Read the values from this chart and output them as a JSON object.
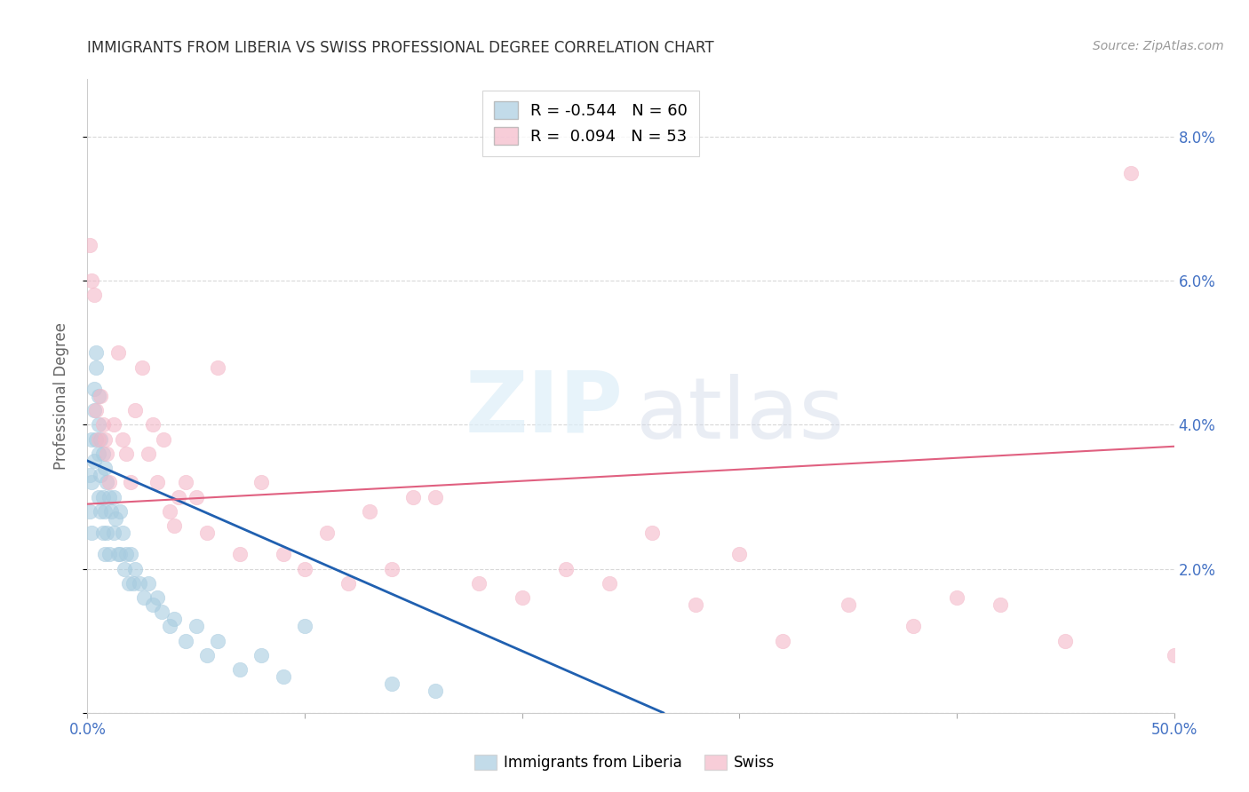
{
  "title": "IMMIGRANTS FROM LIBERIA VS SWISS PROFESSIONAL DEGREE CORRELATION CHART",
  "source": "Source: ZipAtlas.com",
  "ylabel": "Professional Degree",
  "xlim": [
    0.0,
    0.5
  ],
  "ylim": [
    0.0,
    0.088
  ],
  "yticks": [
    0.0,
    0.02,
    0.04,
    0.06,
    0.08
  ],
  "xticks": [
    0.0,
    0.1,
    0.2,
    0.3,
    0.4,
    0.5
  ],
  "legend_label1": "Immigrants from Liberia",
  "legend_label2": "Swiss",
  "R1": -0.544,
  "N1": 60,
  "R2": 0.094,
  "N2": 53,
  "color_blue": "#a8cce0",
  "color_pink": "#f4b8c8",
  "line_color_blue": "#2060b0",
  "line_color_pink": "#e06080",
  "background_color": "#ffffff",
  "tick_color": "#4472C4",
  "blue_x": [
    0.001,
    0.001,
    0.002,
    0.002,
    0.002,
    0.003,
    0.003,
    0.003,
    0.004,
    0.004,
    0.004,
    0.005,
    0.005,
    0.005,
    0.005,
    0.006,
    0.006,
    0.006,
    0.007,
    0.007,
    0.007,
    0.008,
    0.008,
    0.008,
    0.009,
    0.009,
    0.01,
    0.01,
    0.011,
    0.012,
    0.012,
    0.013,
    0.014,
    0.015,
    0.015,
    0.016,
    0.017,
    0.018,
    0.019,
    0.02,
    0.021,
    0.022,
    0.024,
    0.026,
    0.028,
    0.03,
    0.032,
    0.034,
    0.038,
    0.04,
    0.045,
    0.05,
    0.055,
    0.06,
    0.07,
    0.08,
    0.09,
    0.1,
    0.14,
    0.16
  ],
  "blue_y": [
    0.033,
    0.028,
    0.038,
    0.032,
    0.025,
    0.045,
    0.042,
    0.035,
    0.05,
    0.048,
    0.038,
    0.044,
    0.04,
    0.036,
    0.03,
    0.038,
    0.033,
    0.028,
    0.036,
    0.03,
    0.025,
    0.034,
    0.028,
    0.022,
    0.032,
    0.025,
    0.03,
    0.022,
    0.028,
    0.03,
    0.025,
    0.027,
    0.022,
    0.028,
    0.022,
    0.025,
    0.02,
    0.022,
    0.018,
    0.022,
    0.018,
    0.02,
    0.018,
    0.016,
    0.018,
    0.015,
    0.016,
    0.014,
    0.012,
    0.013,
    0.01,
    0.012,
    0.008,
    0.01,
    0.006,
    0.008,
    0.005,
    0.012,
    0.004,
    0.003
  ],
  "pink_x": [
    0.001,
    0.002,
    0.003,
    0.004,
    0.005,
    0.006,
    0.007,
    0.008,
    0.009,
    0.01,
    0.012,
    0.014,
    0.016,
    0.018,
    0.02,
    0.022,
    0.025,
    0.028,
    0.03,
    0.032,
    0.035,
    0.038,
    0.04,
    0.042,
    0.045,
    0.05,
    0.055,
    0.06,
    0.07,
    0.08,
    0.09,
    0.1,
    0.11,
    0.12,
    0.13,
    0.14,
    0.15,
    0.16,
    0.18,
    0.2,
    0.22,
    0.24,
    0.26,
    0.28,
    0.3,
    0.32,
    0.35,
    0.38,
    0.4,
    0.42,
    0.45,
    0.48,
    0.5
  ],
  "pink_y": [
    0.065,
    0.06,
    0.058,
    0.042,
    0.038,
    0.044,
    0.04,
    0.038,
    0.036,
    0.032,
    0.04,
    0.05,
    0.038,
    0.036,
    0.032,
    0.042,
    0.048,
    0.036,
    0.04,
    0.032,
    0.038,
    0.028,
    0.026,
    0.03,
    0.032,
    0.03,
    0.025,
    0.048,
    0.022,
    0.032,
    0.022,
    0.02,
    0.025,
    0.018,
    0.028,
    0.02,
    0.03,
    0.03,
    0.018,
    0.016,
    0.02,
    0.018,
    0.025,
    0.015,
    0.022,
    0.01,
    0.015,
    0.012,
    0.016,
    0.015,
    0.01,
    0.075,
    0.008
  ],
  "blue_line_x": [
    0.0,
    0.265
  ],
  "blue_line_y": [
    0.035,
    0.0
  ],
  "pink_line_x": [
    0.0,
    0.5
  ],
  "pink_line_y": [
    0.029,
    0.037
  ]
}
